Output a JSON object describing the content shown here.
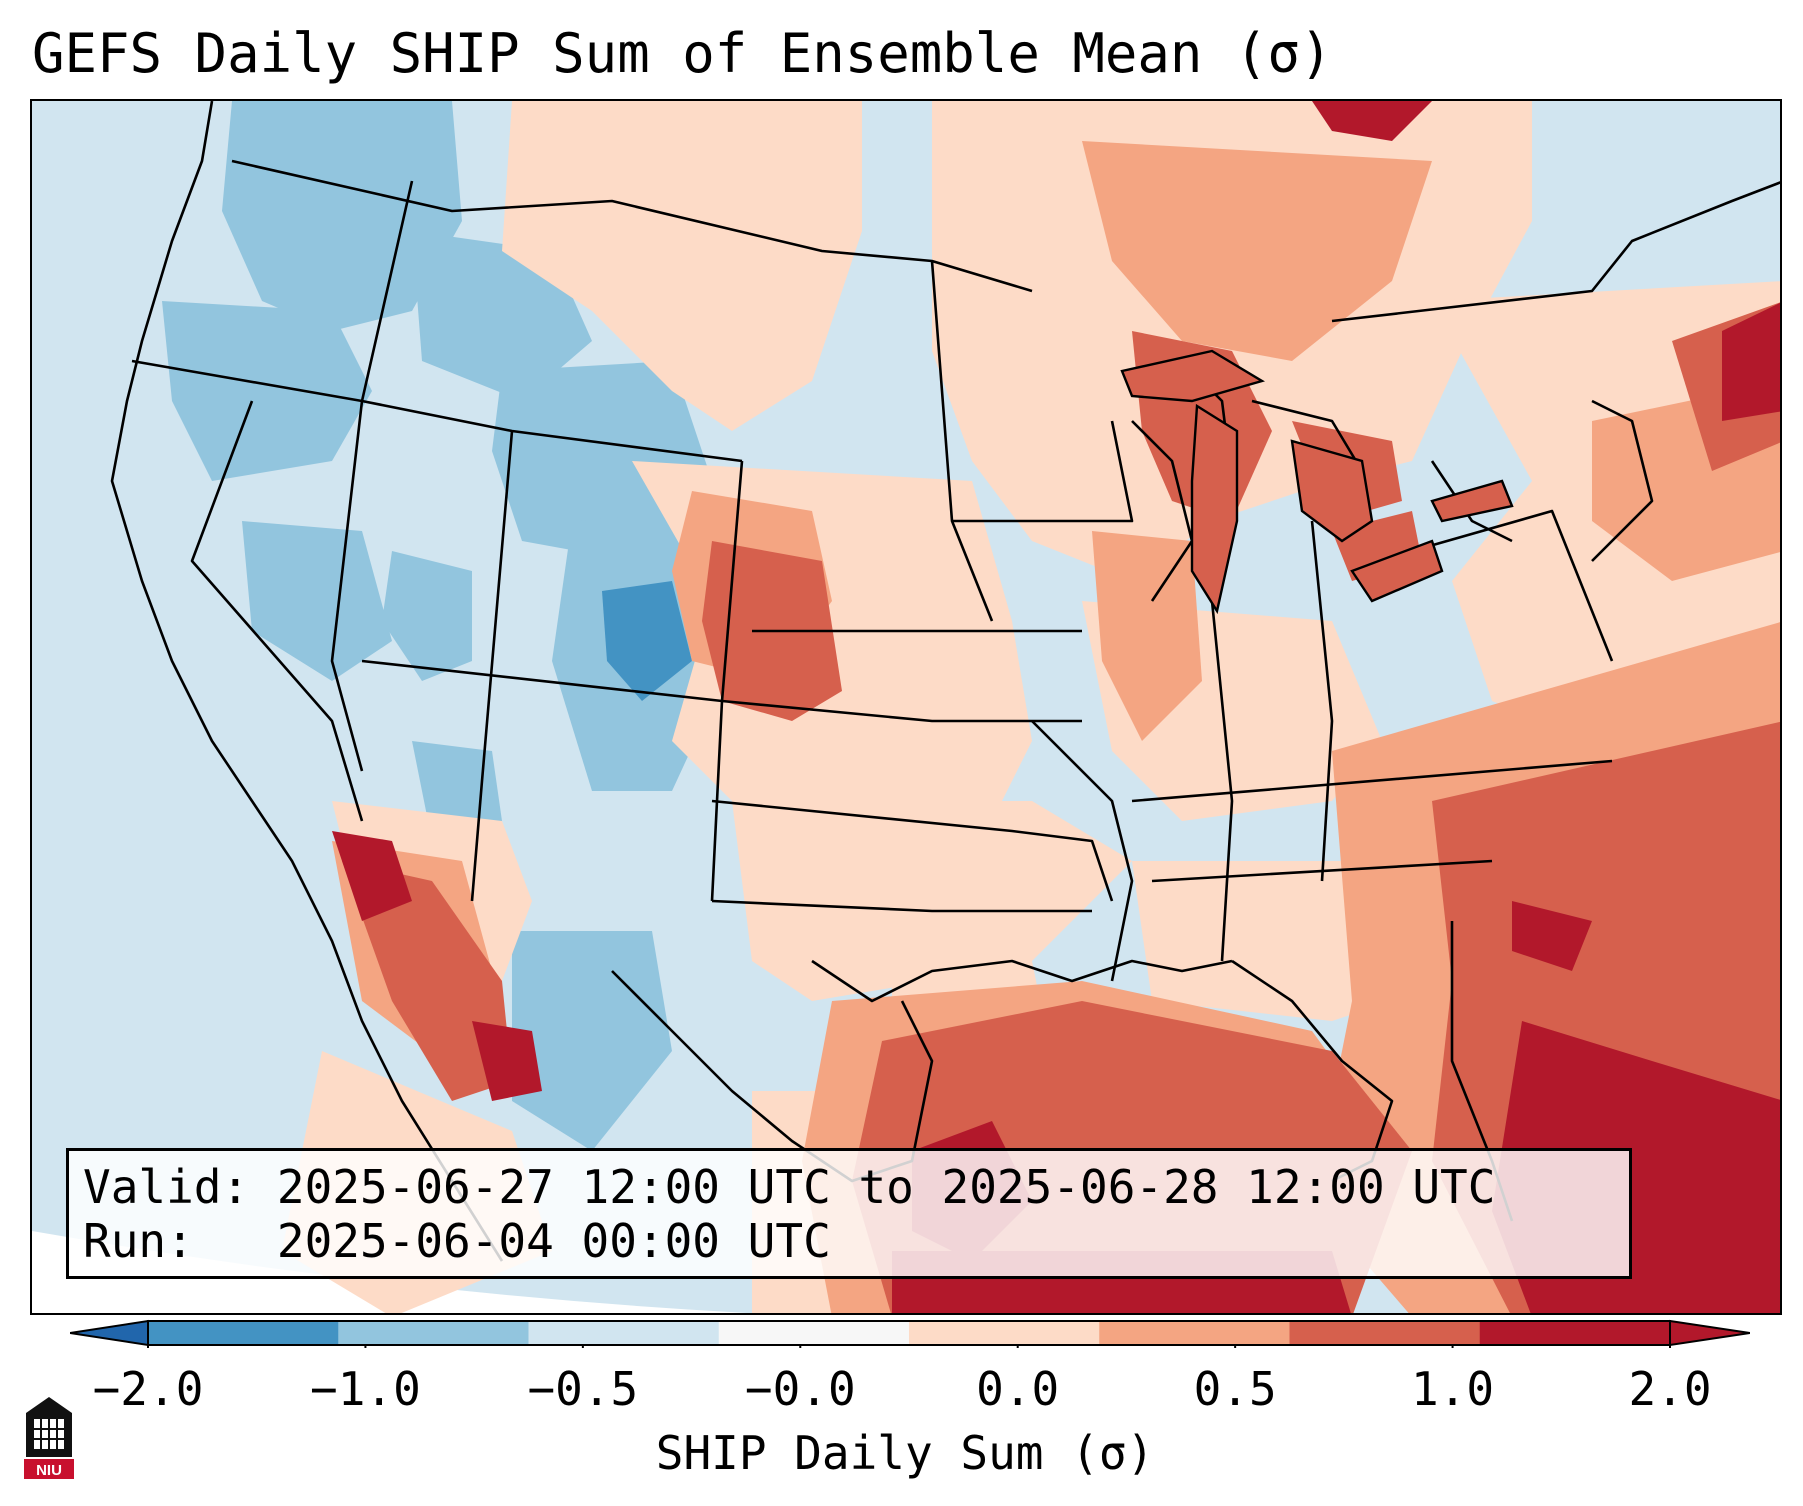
{
  "title": "GEFS Daily SHIP Sum of Ensemble Mean (σ)",
  "info": {
    "valid_label": "Valid:",
    "valid_text": "2025-06-27 12:00 UTC to 2025-06-28 12:00 UTC",
    "run_label": "Run:",
    "run_text": "2025-06-04 00:00 UTC"
  },
  "colorbar": {
    "label": "SHIP Daily Sum (σ)",
    "ticks": [
      "−2.0",
      "−1.0",
      "−0.5",
      "−0.0",
      "0.0",
      "0.5",
      "1.0",
      "2.0"
    ],
    "colors": [
      "#4393c3",
      "#92c5de",
      "#d1e5f0",
      "#f7f7f7",
      "#fddbc7",
      "#f4a582",
      "#d6604d",
      "#b2182b"
    ],
    "extend_low_color": "#2166ac",
    "extend_high_color": "#b2182b"
  },
  "logo": {
    "text": "NIU",
    "icon": "niu-logo-icon"
  }
}
